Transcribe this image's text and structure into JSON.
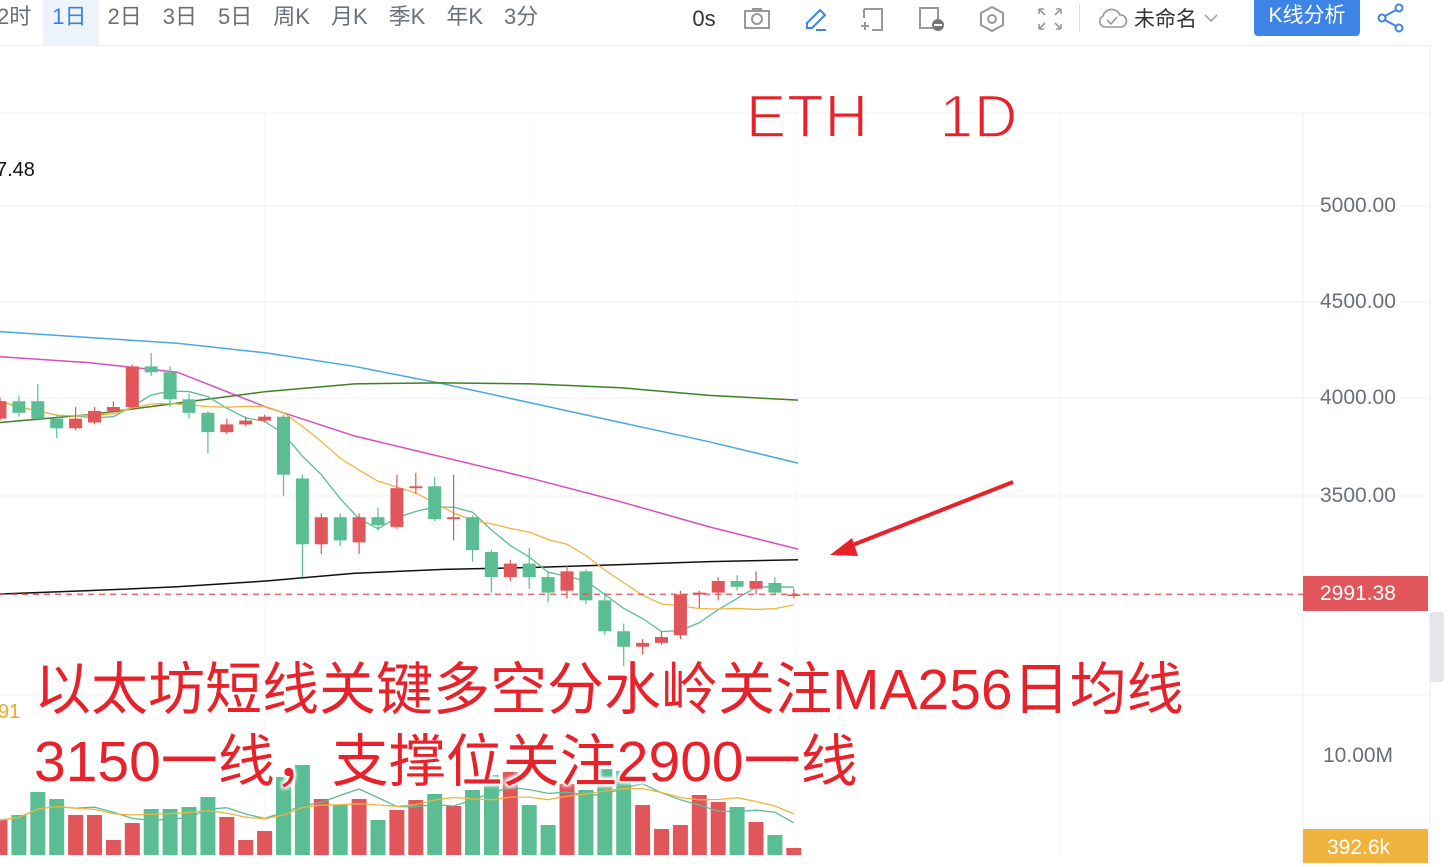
{
  "toolbar": {
    "tabs": [
      {
        "label": "2时",
        "active": false
      },
      {
        "label": "1日",
        "active": true
      },
      {
        "label": "2日",
        "active": false
      },
      {
        "label": "3日",
        "active": false
      },
      {
        "label": "5日",
        "active": false
      },
      {
        "label": "周K",
        "active": false
      },
      {
        "label": "月K",
        "active": false
      },
      {
        "label": "季K",
        "active": false
      },
      {
        "label": "年K",
        "active": false
      },
      {
        "label": "3分",
        "active": false
      }
    ],
    "countdown": "0s",
    "icons": [
      "camera-icon",
      "pencil-icon",
      "add-frame-icon",
      "danmaku-icon",
      "settings-hex-icon",
      "fullscreen-icon",
      "cloud-check-icon",
      "chevron-down-icon",
      "share-icon"
    ],
    "layout_name": "未命名",
    "analysis_button": "K线分析",
    "accent_color": "#3e83e6"
  },
  "chart": {
    "overlay_title": "ETH    1D",
    "high_label": "7.48",
    "volume_ma_label": "91",
    "price_axis": [
      "5000.00",
      "4500.00",
      "4000.00",
      "3500.00"
    ],
    "current_price": "2991.38",
    "volume_axis": "10.00M",
    "current_volume": "392.6k",
    "up_color": "#e0565a",
    "down_color": "#5bbd94",
    "candles": [
      [
        3900,
        4010,
        3890,
        3990
      ],
      [
        3990,
        4020,
        3910,
        3930
      ],
      [
        3990,
        4080,
        3890,
        3900
      ],
      [
        3900,
        3920,
        3800,
        3850
      ],
      [
        3850,
        3960,
        3840,
        3900
      ],
      [
        3880,
        3960,
        3870,
        3940
      ],
      [
        3940,
        3990,
        3930,
        3960
      ],
      [
        3960,
        4180,
        3950,
        4170
      ],
      [
        4170,
        4240,
        4120,
        4140
      ],
      [
        4140,
        4170,
        3960,
        4000
      ],
      [
        4000,
        4030,
        3900,
        3930
      ],
      [
        3930,
        3940,
        3720,
        3830
      ],
      [
        3830,
        3900,
        3820,
        3870
      ],
      [
        3870,
        3910,
        3860,
        3890
      ],
      [
        3890,
        3920,
        3880,
        3910
      ],
      [
        3910,
        3920,
        3500,
        3610
      ],
      [
        3590,
        3610,
        3080,
        3250
      ],
      [
        3250,
        3410,
        3200,
        3390
      ],
      [
        3390,
        3410,
        3240,
        3270
      ],
      [
        3260,
        3410,
        3200,
        3390
      ],
      [
        3390,
        3440,
        3320,
        3350
      ],
      [
        3340,
        3610,
        3330,
        3540
      ],
      [
        3540,
        3620,
        3510,
        3550
      ],
      [
        3550,
        3600,
        3370,
        3380
      ],
      [
        3380,
        3610,
        3270,
        3390
      ],
      [
        3390,
        3400,
        3160,
        3220
      ],
      [
        3210,
        3220,
        3000,
        3080
      ],
      [
        3080,
        3170,
        3060,
        3150
      ],
      [
        3150,
        3230,
        3020,
        3080
      ],
      [
        3080,
        3110,
        2950,
        3000
      ],
      [
        3010,
        3140,
        2970,
        3110
      ],
      [
        3110,
        3120,
        2940,
        2960
      ],
      [
        2960,
        3000,
        2780,
        2800
      ],
      [
        2800,
        2840,
        2620,
        2720
      ],
      [
        2720,
        2760,
        2680,
        2740
      ],
      [
        2740,
        2800,
        2730,
        2770
      ],
      [
        2780,
        3010,
        2760,
        2990
      ],
      [
        2990,
        3010,
        2920,
        3000
      ],
      [
        3000,
        3080,
        2960,
        3060
      ],
      [
        3060,
        3090,
        3010,
        3030
      ],
      [
        3020,
        3110,
        2990,
        3060
      ],
      [
        3050,
        3080,
        2990,
        3000
      ],
      [
        2990,
        3020,
        2970,
        2990
      ]
    ],
    "volumes_m": [
      3.5,
      4.0,
      6.3,
      5.6,
      4.0,
      4.0,
      1.5,
      3.2,
      4.6,
      4.6,
      4.8,
      5.8,
      3.8,
      1.5,
      2.4,
      7.8,
      9.0,
      5.6,
      5.0,
      5.6,
      3.5,
      4.5,
      5.5,
      6.1,
      4.9,
      6.5,
      8.0,
      8.3,
      5.0,
      3.0,
      7.1,
      6.5,
      8.6,
      8.4,
      5.0,
      2.6,
      3.0,
      6.0,
      5.3,
      4.8,
      3.3,
      2.0,
      0.7
    ],
    "long_ma_lines": [
      {
        "color": "#4aa8e0",
        "values": [
          4350,
          4320,
          4290,
          4240,
          4170,
          4080,
          3980,
          3880,
          3780,
          3670
        ]
      },
      {
        "color": "#d94fbf",
        "values": [
          4220,
          4190,
          4140,
          3960,
          3810,
          3700,
          3590,
          3470,
          3340,
          3225
        ]
      },
      {
        "color": "#3f7f25",
        "values": [
          3880,
          3920,
          3980,
          4040,
          4080,
          4085,
          4080,
          4060,
          4020,
          3996
        ]
      },
      {
        "color": "#111111",
        "values": [
          2993,
          3010,
          3030,
          3060,
          3100,
          3120,
          3130,
          3145,
          3160,
          3170
        ]
      }
    ]
  },
  "caption": {
    "line1": "以太坊短线关键多空分水岭关注MA256日均线",
    "line2": "3150一线，支撑位关注2900一线"
  }
}
